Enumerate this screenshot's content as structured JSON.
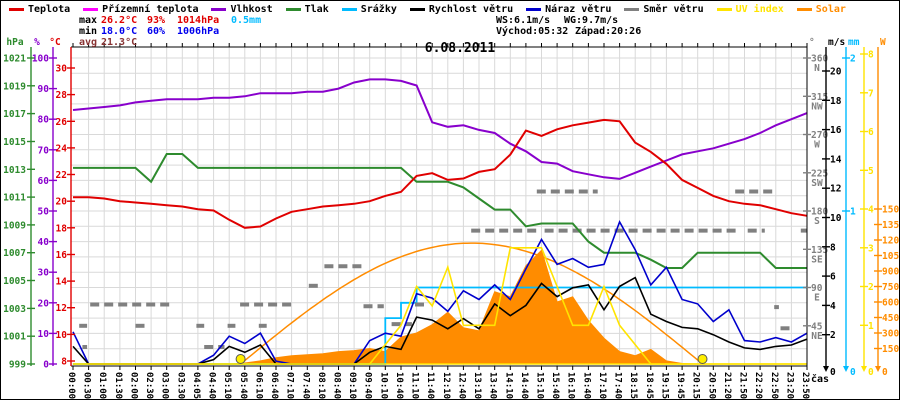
{
  "title": "6.08.2011",
  "x_axis_label": "čas",
  "palette": {
    "temperature": "#e00000",
    "ground_temperature": "#ff00ff",
    "humidity": "#8800cc",
    "pressure": "#2e8b2e",
    "precipitation": "#00bbff",
    "wind_speed": "#000000",
    "wind_gust": "#0000cc",
    "wind_direction": "#808080",
    "uv_index": "#ffe400",
    "solar": "#ff8c00",
    "max_value_text": "#e00000",
    "min_value_text": "#0000ee",
    "avg_value_text": "#883333",
    "grid": "#d9d9d9",
    "label_text": "#000000"
  },
  "legend": {
    "items": [
      {
        "name": "temperature",
        "label": "Teplota",
        "color": "#e00000"
      },
      {
        "name": "ground-temperature",
        "label": "Přízemní teplota",
        "color": "#ff00ff"
      },
      {
        "name": "humidity",
        "label": "Vlhkost",
        "color": "#8800cc"
      },
      {
        "name": "pressure",
        "label": "Tlak",
        "color": "#2e8b2e"
      },
      {
        "name": "precipitation",
        "label": "Srážky",
        "color": "#00bbff"
      },
      {
        "name": "wind-speed",
        "label": "Rychlost větru",
        "color": "#000000"
      },
      {
        "name": "wind-gust",
        "label": "Náraz větru",
        "color": "#0000cc"
      },
      {
        "name": "wind-direction",
        "label": "Směr větru",
        "color": "#808080"
      },
      {
        "name": "uv-index",
        "label": "UV index",
        "color": "#ffe400"
      },
      {
        "name": "solar",
        "label": "Solar",
        "color": "#ff8c00"
      }
    ]
  },
  "stats": {
    "max_label": "max",
    "max_temp": "26.2°C",
    "max_hum": "93%",
    "max_pres": "1014hPa",
    "max_precip": "0.5mm",
    "min_label": "min",
    "min_temp": "18.0°C",
    "min_hum": "60%",
    "min_pres": "1006hPa",
    "avg_label": "avg",
    "avg_temp": "21.3°C",
    "wind_speed_max": "WS:6.1m/s",
    "wind_gust_max": "WG:9.7m/s",
    "sunrise": "Východ:05:32",
    "sunset": "Západ:20:26"
  },
  "axes": {
    "left": [
      {
        "unit": "hPa",
        "color": "#2e8b2e",
        "scale": "pres",
        "ticks": [
          1021,
          1019,
          1017,
          1015,
          1013,
          1011,
          1009,
          1007,
          1005,
          1003,
          1001,
          999
        ]
      },
      {
        "unit": "%",
        "color": "#8800cc",
        "scale": "hum",
        "ticks": [
          100,
          90,
          80,
          70,
          60,
          50,
          40,
          30,
          20,
          10,
          0
        ]
      },
      {
        "unit": "°C",
        "color": "#e00000",
        "scale": "temp",
        "ticks": [
          30,
          28,
          26,
          24,
          22,
          20,
          18,
          16,
          14,
          12,
          10,
          8
        ]
      }
    ],
    "right": [
      {
        "unit": "°",
        "color": "#808080",
        "scale": "dir",
        "ticks": [
          {
            "v": 360,
            "label": "N"
          },
          {
            "v": 315,
            "label": "NW"
          },
          {
            "v": 270,
            "label": "W"
          },
          {
            "v": 225,
            "label": "SW"
          },
          {
            "v": 180,
            "label": "S"
          },
          {
            "v": 135,
            "label": "SE"
          },
          {
            "v": 90,
            "label": "E"
          },
          {
            "v": 45,
            "label": "NE"
          }
        ]
      },
      {
        "unit": "m/s",
        "color": "#000000",
        "scale": "wind",
        "ticks": [
          20,
          18,
          16,
          14,
          12,
          10,
          8,
          6,
          4,
          2
        ]
      },
      {
        "unit": "mm",
        "color": "#00bbff",
        "scale": "mm",
        "ticks": [
          2,
          1
        ]
      },
      {
        "unit": "",
        "color": "#ffe400",
        "scale": "uv",
        "ticks": [
          8,
          7,
          6,
          5,
          4,
          3,
          2,
          1
        ]
      },
      {
        "unit": "W",
        "color": "#ff8c00",
        "scale": "solar",
        "ticks": [
          1500,
          1350,
          1200,
          1050,
          900,
          750,
          600,
          450,
          300,
          150
        ]
      }
    ]
  },
  "chart_data": {
    "type": "line",
    "title": "6.08.2011",
    "xlabel": "čas",
    "grid": true,
    "x_labels": [
      "00:00",
      "00:30",
      "01:00",
      "01:30",
      "02:00",
      "02:30",
      "03:00",
      "03:30",
      "04:05",
      "04:40",
      "05:10",
      "05:40",
      "06:10",
      "06:40",
      "07:10",
      "07:40",
      "08:10",
      "08:40",
      "09:10",
      "09:40",
      "10:10",
      "10:40",
      "11:10",
      "11:40",
      "12:10",
      "12:40",
      "13:10",
      "13:40",
      "14:10",
      "14:40",
      "15:10",
      "15:40",
      "16:10",
      "16:40",
      "17:10",
      "17:40",
      "18:15",
      "18:45",
      "19:15",
      "19:45",
      "20:15",
      "20:50",
      "21:20",
      "21:50",
      "22:20",
      "22:50",
      "23:20",
      "23:50"
    ],
    "axes_ranges": {
      "temp": {
        "min": 8,
        "max": 30,
        "unit": "°C"
      },
      "hum": {
        "min": 0,
        "max": 100,
        "unit": "%"
      },
      "pres": {
        "min": 999,
        "max": 1021,
        "unit": "hPa"
      },
      "wind": {
        "min": 0,
        "max": 21,
        "unit": "m/s"
      },
      "mm": {
        "min": 0,
        "max": 2,
        "unit": "mm"
      },
      "uv": {
        "min": 0,
        "max": 8
      },
      "solar": {
        "min": 0,
        "max": 3050,
        "unit": "W"
      },
      "dir": {
        "min": 0,
        "max": 360,
        "unit": "°"
      }
    },
    "series": [
      {
        "name": "Teplota",
        "axis": "temp",
        "color": "#e00000",
        "width": 2,
        "values": [
          20.3,
          20.3,
          20.2,
          20.0,
          19.9,
          19.8,
          19.7,
          19.6,
          19.4,
          19.3,
          18.6,
          18.0,
          18.1,
          18.7,
          19.2,
          19.4,
          19.6,
          19.7,
          19.8,
          20.0,
          20.4,
          20.7,
          21.9,
          22.1,
          21.6,
          21.7,
          22.2,
          22.4,
          23.5,
          25.3,
          24.9,
          25.4,
          25.7,
          25.9,
          26.1,
          26.0,
          24.4,
          23.7,
          22.8,
          21.6,
          21.0,
          20.4,
          20.0,
          19.8,
          19.7,
          19.4,
          19.1,
          18.9
        ]
      },
      {
        "name": "Vlhkost",
        "axis": "hum",
        "color": "#8800cc",
        "width": 2,
        "values": [
          83,
          83.5,
          84,
          84.5,
          85.5,
          86,
          86.5,
          86.5,
          86.5,
          87,
          87,
          87.5,
          88.5,
          88.5,
          88.5,
          89,
          89,
          90,
          92,
          93,
          93,
          92.5,
          91,
          79,
          77.5,
          78,
          76.5,
          75.5,
          72,
          69.5,
          66,
          65.5,
          63,
          62,
          61,
          60.5,
          62.5,
          64.5,
          66.5,
          68.5,
          69.5,
          70.5,
          72,
          73.5,
          75.5,
          78,
          80,
          82
        ]
      },
      {
        "name": "Tlak",
        "axis": "pres",
        "color": "#2e8b2e",
        "width": 2,
        "values": [
          1013.1,
          1013.1,
          1013.1,
          1013.1,
          1013.1,
          1012.1,
          1014.1,
          1014.1,
          1013.1,
          1013.1,
          1013.1,
          1013.1,
          1013.1,
          1013.1,
          1013.1,
          1013.1,
          1013.1,
          1013.1,
          1013.1,
          1013.1,
          1013.1,
          1013.1,
          1012.1,
          1012.1,
          1012.1,
          1011.7,
          1010.9,
          1010.1,
          1010.1,
          1008.9,
          1009.1,
          1009.1,
          1009.1,
          1007.8,
          1007.0,
          1007.0,
          1007.0,
          1006.5,
          1005.9,
          1005.9,
          1007.0,
          1007.0,
          1007.0,
          1007.0,
          1007.0,
          1005.9,
          1005.9,
          1005.9
        ]
      },
      {
        "name": "Srážky",
        "axis": "mm",
        "color": "#00bbff",
        "width": 1.6,
        "step": true,
        "values": [
          0,
          0,
          0,
          0,
          0,
          0,
          0,
          0,
          0,
          0,
          0,
          0,
          0,
          0,
          0,
          0,
          0,
          0,
          0,
          0,
          0.3,
          0.4,
          0.5,
          0.5,
          0.5,
          0.5,
          0.5,
          0.5,
          0.5,
          0.5,
          0.5,
          0.5,
          0.5,
          0.5,
          0.5,
          0.5,
          0.5,
          0.5,
          0.5,
          0.5,
          0.5,
          0.5,
          0.5,
          0.5,
          0.5,
          0.5,
          0.5,
          0.5
        ]
      },
      {
        "name": "Náraz větru",
        "axis": "wind",
        "color": "#0000cc",
        "width": 1.6,
        "values": [
          2.2,
          0,
          0,
          0,
          0,
          0,
          0,
          0,
          0,
          0.6,
          1.9,
          1.4,
          2.1,
          0.2,
          0,
          0,
          0,
          0,
          0,
          1.6,
          2.1,
          1.9,
          4.8,
          4.5,
          3.6,
          5.0,
          4.4,
          5.4,
          4.4,
          6.5,
          8.5,
          6.8,
          7.2,
          6.6,
          6.8,
          9.7,
          7.8,
          5.4,
          6.6,
          4.4,
          4.1,
          2.9,
          3.7,
          1.6,
          1.5,
          1.8,
          1.5,
          2.1
        ]
      },
      {
        "name": "Rychlost větru",
        "axis": "wind",
        "color": "#000000",
        "width": 1.6,
        "values": [
          1.2,
          0,
          0,
          0,
          0,
          0,
          0,
          0,
          0,
          0.3,
          1.2,
          0.8,
          1.3,
          0,
          0,
          0,
          0,
          0,
          0,
          0.8,
          1.2,
          1.0,
          3.2,
          3.0,
          2.4,
          3.1,
          2.4,
          4.1,
          3.3,
          4.0,
          5.5,
          4.6,
          5.2,
          5.4,
          3.7,
          5.3,
          5.9,
          3.4,
          2.9,
          2.5,
          2.4,
          2.0,
          1.5,
          1.1,
          1.0,
          1.2,
          1.3,
          1.7
        ]
      },
      {
        "name": "UV index",
        "axis": "uv",
        "color": "#ffe400",
        "width": 1.6,
        "values": [
          0,
          0,
          0,
          0,
          0,
          0,
          0,
          0,
          0,
          0,
          0,
          0,
          0,
          0,
          0,
          0,
          0,
          0,
          0,
          0,
          0.5,
          1,
          2,
          1.5,
          2.5,
          1,
          1,
          1,
          3,
          3,
          3,
          2,
          1,
          1,
          2,
          1,
          0.5,
          0,
          0,
          0,
          0,
          0,
          0,
          0,
          0,
          0,
          0,
          0
        ]
      },
      {
        "name": "Solar",
        "axis": "solar",
        "color": "#ff8c00",
        "width": 1,
        "fill": true,
        "values": [
          0,
          0,
          0,
          0,
          0,
          0,
          0,
          0,
          0,
          0,
          0,
          10,
          30,
          60,
          80,
          90,
          100,
          120,
          130,
          150,
          120,
          260,
          300,
          380,
          500,
          350,
          320,
          700,
          650,
          950,
          1100,
          600,
          650,
          420,
          250,
          120,
          80,
          140,
          30,
          5,
          0,
          0,
          0,
          0,
          0,
          0,
          0,
          0
        ]
      }
    ],
    "solar_theoretical": {
      "name": "Solar (clear sky)",
      "color": "#ff8c00",
      "peak_w": 1170,
      "sunrise_idx": 10.73,
      "sunset_idx": 40.31
    },
    "sun_markers": {
      "color": "#ffee00",
      "sunrise_time": "05:32",
      "sunset_time": "20:26",
      "sunrise_idx": 10.73,
      "sunset_idx": 40.31
    },
    "wind_direction_segments": [
      {
        "from": 0.4,
        "to": 0.9,
        "deg": 45
      },
      {
        "from": 0.6,
        "to": 0.9,
        "deg": 20
      },
      {
        "from": 1.1,
        "to": 6.3,
        "deg": 70
      },
      {
        "from": 4.0,
        "to": 4.6,
        "deg": 45
      },
      {
        "from": 7.9,
        "to": 8.4,
        "deg": 45
      },
      {
        "from": 8.4,
        "to": 9.7,
        "deg": 20
      },
      {
        "from": 9.9,
        "to": 10.4,
        "deg": 45
      },
      {
        "from": 10.7,
        "to": 14.2,
        "deg": 70
      },
      {
        "from": 11.9,
        "to": 12.4,
        "deg": 45
      },
      {
        "from": 15.1,
        "to": 15.9,
        "deg": 92
      },
      {
        "from": 16.1,
        "to": 18.6,
        "deg": 115
      },
      {
        "from": 18.6,
        "to": 19.9,
        "deg": 68
      },
      {
        "from": 20.4,
        "to": 21.7,
        "deg": 47
      },
      {
        "from": 21.9,
        "to": 22.6,
        "deg": 70
      },
      {
        "from": 25.5,
        "to": 29.8,
        "deg": 157
      },
      {
        "from": 30.2,
        "to": 42.6,
        "deg": 157
      },
      {
        "from": 29.7,
        "to": 33.6,
        "deg": 203
      },
      {
        "from": 42.4,
        "to": 44.8,
        "deg": 203
      },
      {
        "from": 43.2,
        "to": 44.3,
        "deg": 157
      },
      {
        "from": 44.9,
        "to": 45.2,
        "deg": 67
      },
      {
        "from": 45.3,
        "to": 46.0,
        "deg": 42
      },
      {
        "from": 46.6,
        "to": 47.0,
        "deg": 157
      }
    ]
  }
}
